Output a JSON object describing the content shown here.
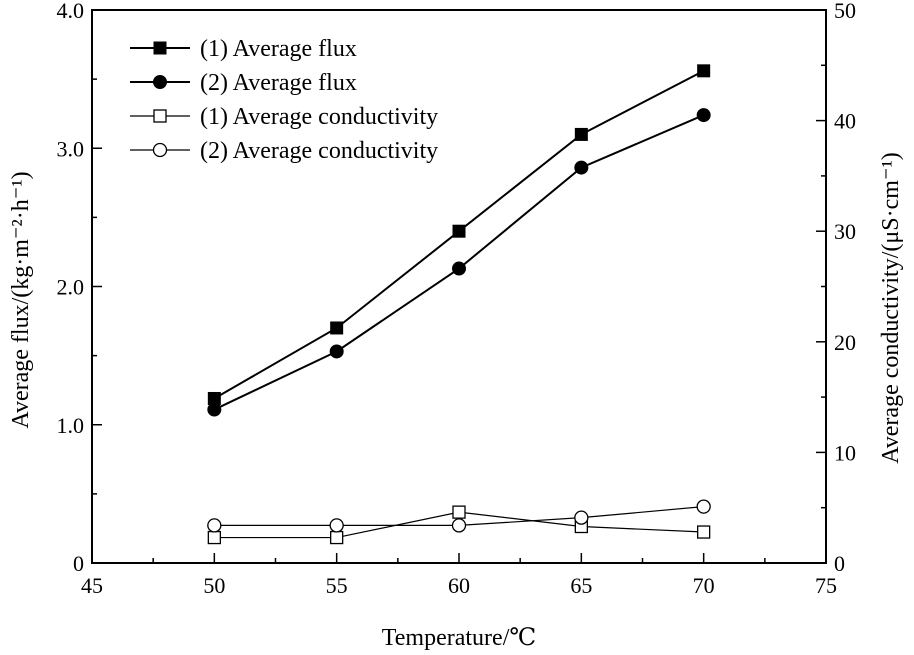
{
  "chart_data": {
    "type": "line",
    "xlabel": "Temperature/℃",
    "ylabel_left": "Average flux/(kg·m⁻²·h⁻¹)",
    "ylabel_right": "Average conductivity/(μS·cm⁻¹)",
    "xlim": [
      45,
      75
    ],
    "ylim_left": [
      0,
      4.0
    ],
    "ylim_right": [
      0,
      50
    ],
    "x_ticks": [
      "45",
      "50",
      "55",
      "60",
      "65",
      "70",
      "75"
    ],
    "y_left_ticks": [
      "0",
      "1.0",
      "2.0",
      "3.0",
      "4.0"
    ],
    "y_right_ticks": [
      "0",
      "10",
      "20",
      "30",
      "40",
      "50"
    ],
    "grid": false,
    "legend_position": "top-left",
    "x": [
      50,
      55,
      60,
      65,
      70
    ],
    "series": [
      {
        "name": "(1) Average flux",
        "axis": "left",
        "marker": "filled-square",
        "values": [
          1.19,
          1.7,
          2.4,
          3.1,
          3.56
        ]
      },
      {
        "name": "(2) Average flux",
        "axis": "left",
        "marker": "filled-circle",
        "values": [
          1.11,
          1.53,
          2.13,
          2.86,
          3.24
        ]
      },
      {
        "name": "(1) Average conductivity",
        "axis": "right",
        "marker": "open-square",
        "values": [
          2.3,
          2.3,
          4.6,
          3.3,
          2.8
        ]
      },
      {
        "name": "(2) Average conductivity",
        "axis": "right",
        "marker": "open-circle",
        "values": [
          3.4,
          3.4,
          3.4,
          4.1,
          5.1
        ]
      }
    ]
  }
}
